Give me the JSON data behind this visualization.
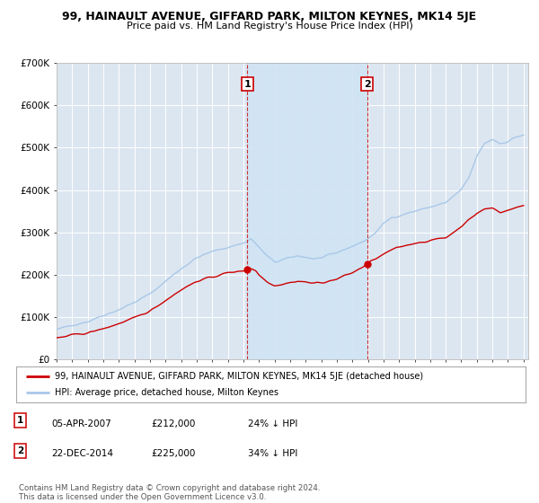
{
  "title": "99, HAINAULT AVENUE, GIFFARD PARK, MILTON KEYNES, MK14 5JE",
  "subtitle": "Price paid vs. HM Land Registry's House Price Index (HPI)",
  "background_color": "#ffffff",
  "plot_bg_color": "#dce6f1",
  "grid_color": "#ffffff",
  "hpi_color": "#a8c8e8",
  "hpi_shade_color": "#d0e4f4",
  "price_color": "#cc0000",
  "ylim": [
    0,
    700000
  ],
  "yticks": [
    0,
    100000,
    200000,
    300000,
    400000,
    500000,
    600000,
    700000
  ],
  "ytick_labels": [
    "£0",
    "£100K",
    "£200K",
    "£300K",
    "£400K",
    "£500K",
    "£600K",
    "£700K"
  ],
  "sale1_yr": 2007.25,
  "sale1_price": 212000,
  "sale2_yr": 2014.96,
  "sale2_price": 225000,
  "legend_entries": [
    "99, HAINAULT AVENUE, GIFFARD PARK, MILTON KEYNES, MK14 5JE (detached house)",
    "HPI: Average price, detached house, Milton Keynes"
  ],
  "table_rows": [
    {
      "num": "1",
      "date": "05-APR-2007",
      "price": "£212,000",
      "hpi": "24% ↓ HPI"
    },
    {
      "num": "2",
      "date": "22-DEC-2014",
      "price": "£225,000",
      "hpi": "34% ↓ HPI"
    }
  ],
  "footnote": "Contains HM Land Registry data © Crown copyright and database right 2024.\nThis data is licensed under the Open Government Licence v3.0.",
  "xstart_year": 1995,
  "xend_year": 2025
}
